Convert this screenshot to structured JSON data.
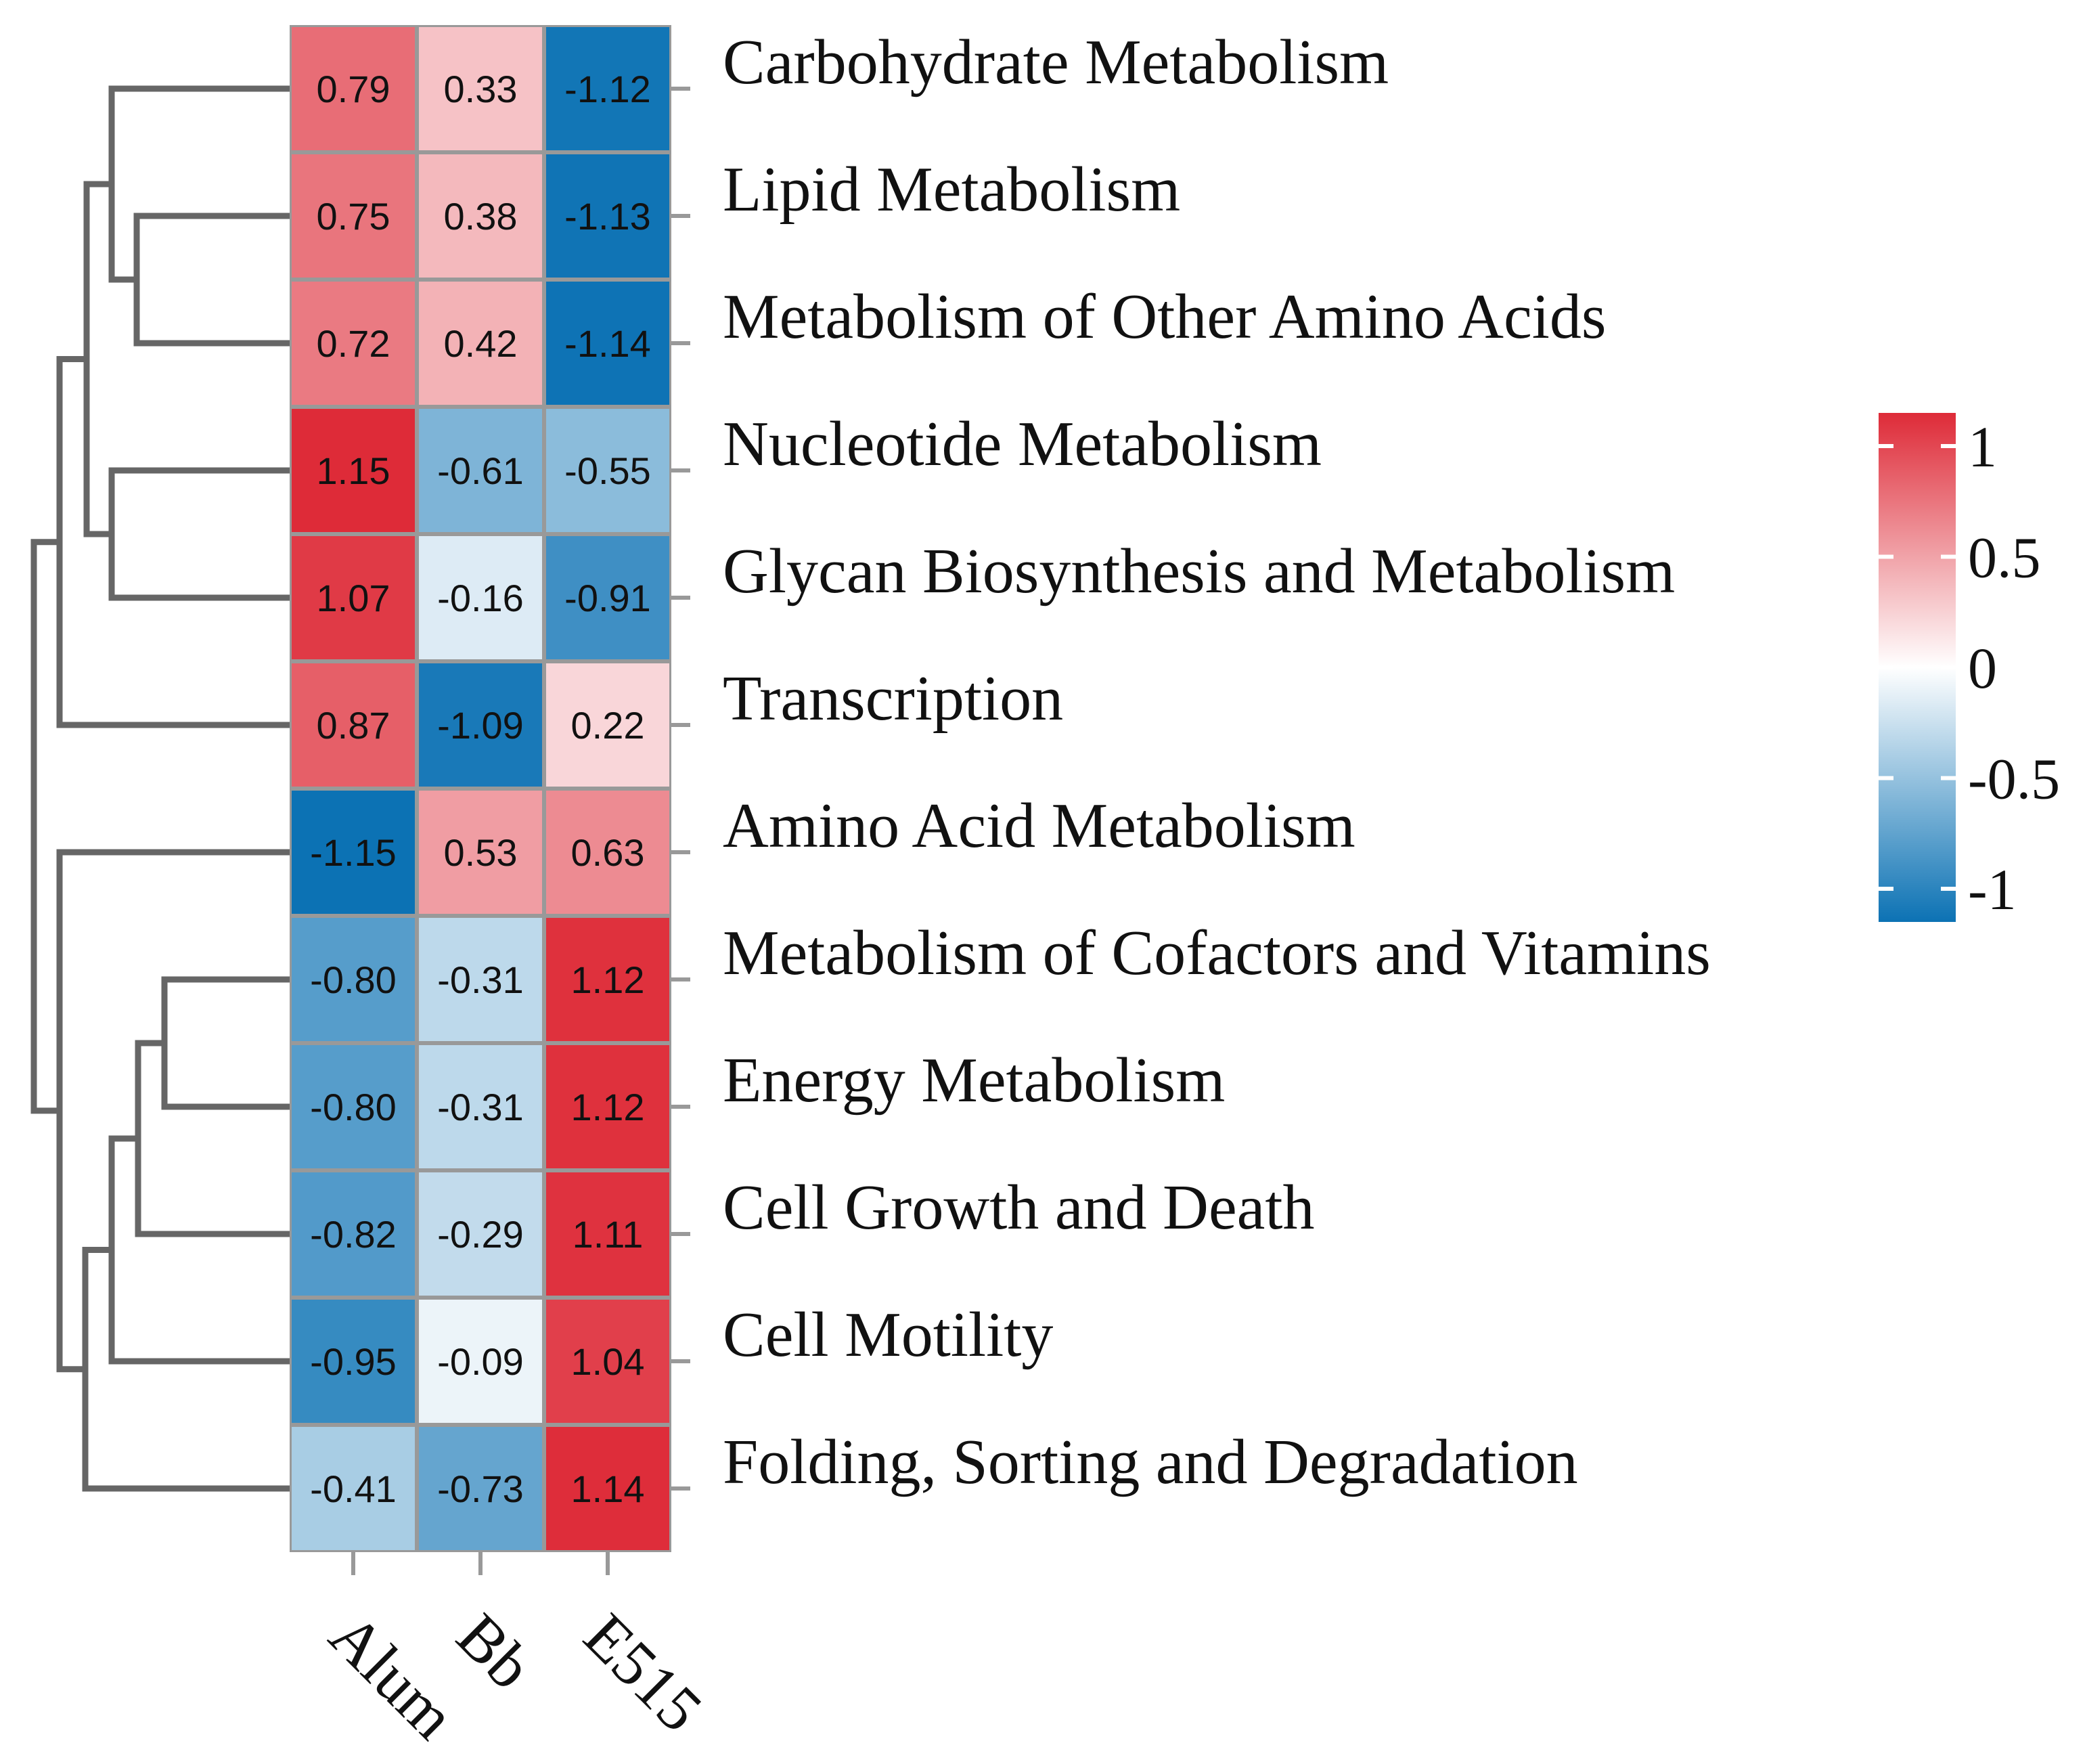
{
  "chart_data": {
    "type": "heatmap",
    "title": "",
    "columns": [
      "Alum",
      "Bb",
      "E515"
    ],
    "rows": [
      "Carbohydrate Metabolism",
      "Lipid Metabolism",
      "Metabolism of Other Amino Acids",
      "Nucleotide Metabolism",
      "Glycan Biosynthesis and Metabolism",
      "Transcription",
      "Amino Acid Metabolism",
      "Metabolism of Cofactors and Vitamins",
      "Energy Metabolism",
      "Cell Growth and Death",
      "Cell Motility",
      "Folding, Sorting and Degradation"
    ],
    "values": [
      [
        0.79,
        0.33,
        -1.12
      ],
      [
        0.75,
        0.38,
        -1.13
      ],
      [
        0.72,
        0.42,
        -1.14
      ],
      [
        1.15,
        -0.61,
        -0.55
      ],
      [
        1.07,
        -0.16,
        -0.91
      ],
      [
        0.87,
        -1.09,
        0.22
      ],
      [
        -1.15,
        0.53,
        0.63
      ],
      [
        -0.8,
        -0.31,
        1.12
      ],
      [
        -0.8,
        -0.31,
        1.12
      ],
      [
        -0.82,
        -0.29,
        1.11
      ],
      [
        -0.95,
        -0.09,
        1.04
      ],
      [
        -0.41,
        -0.73,
        1.14
      ]
    ],
    "display_values": [
      [
        "0.79",
        "0.33",
        "-1.12"
      ],
      [
        "0.75",
        "0.38",
        "-1.13"
      ],
      [
        "0.72",
        "0.42",
        "-1.14"
      ],
      [
        "1.15",
        "-0.61",
        "-0.55"
      ],
      [
        "1.07",
        "-0.16",
        "-0.91"
      ],
      [
        "0.87",
        "-1.09",
        "0.22"
      ],
      [
        "-1.15",
        "0.53",
        "0.63"
      ],
      [
        "-0.80",
        "-0.31",
        "1.12"
      ],
      [
        "-0.80",
        "-0.31",
        "1.12"
      ],
      [
        "-0.82",
        "-0.29",
        "1.11"
      ],
      [
        "-0.95",
        "-0.09",
        "1.04"
      ],
      [
        "-0.41",
        "-0.73",
        "1.14"
      ]
    ],
    "color_scale": {
      "min": -1.15,
      "max": 1.15,
      "low_color": "#0c72b4",
      "mid_color": "#ffffff",
      "high_color": "#de2b38"
    },
    "legend": {
      "position": "right",
      "ticks": [
        1,
        0.5,
        0,
        -0.5,
        -1
      ],
      "tick_labels": [
        "1",
        "0.5",
        "0",
        "-0.5",
        "-1"
      ]
    },
    "row_dendrogram": "left",
    "grid_color": "#999999",
    "dendrogram_color": "#666666"
  }
}
